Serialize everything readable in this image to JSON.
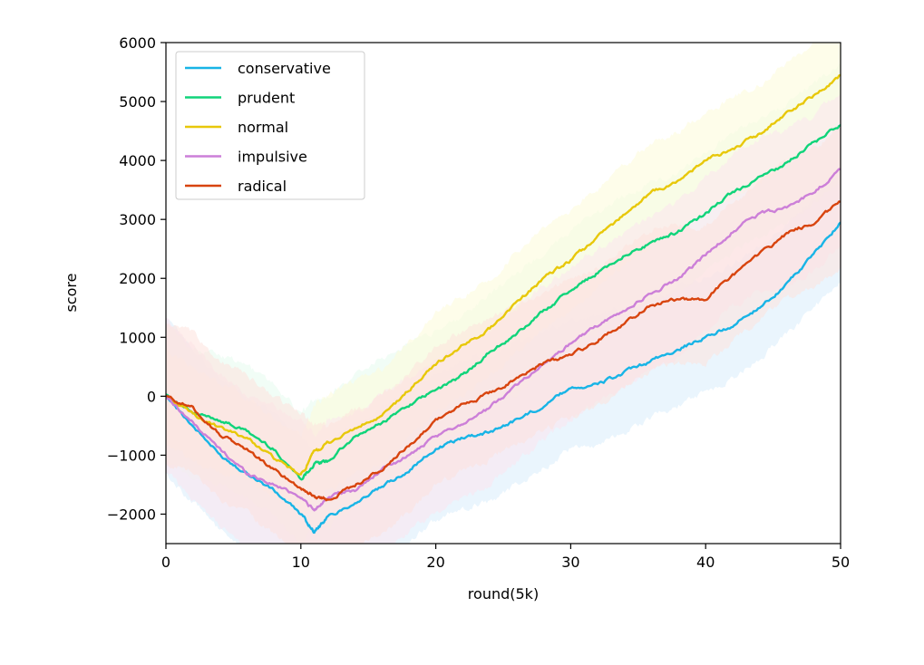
{
  "chart_data": {
    "type": "line",
    "title": "",
    "xlabel": "round(5k)",
    "ylabel": "score",
    "xlim": [
      0,
      50
    ],
    "ylim": [
      -2500,
      6000
    ],
    "xticks": [
      "0",
      "10",
      "20",
      "30",
      "40",
      "50"
    ],
    "yticks": [
      "−2000",
      "−1000",
      "0",
      "1000",
      "2000",
      "3000",
      "4000",
      "5000",
      "6000"
    ],
    "grid": false,
    "legend_position": "upper-left",
    "series": [
      {
        "name": "conservative",
        "color": "#18b4e6",
        "band_color": "#d8ecfb",
        "x": [
          0,
          2,
          4,
          6,
          8,
          10,
          11,
          12,
          14,
          16,
          18,
          20,
          22,
          24,
          26,
          28,
          30,
          32,
          34,
          36,
          38,
          40,
          42,
          44,
          46,
          48,
          50
        ],
        "y": [
          0,
          -500,
          -1000,
          -1300,
          -1600,
          -2000,
          -2300,
          -2050,
          -1800,
          -1550,
          -1250,
          -900,
          -700,
          -600,
          -400,
          -150,
          150,
          200,
          400,
          600,
          800,
          1000,
          1200,
          1500,
          1900,
          2400,
          2950
        ],
        "band_lower": [
          -1300,
          -1800,
          -2300,
          -2600,
          -2800,
          -3200,
          -3500,
          -3300,
          -3000,
          -2800,
          -2500,
          -2100,
          -1900,
          -1800,
          -1500,
          -1200,
          -900,
          -850,
          -600,
          -350,
          -150,
          50,
          300,
          650,
          1050,
          1500,
          1900
        ],
        "band_upper": [
          1300,
          800,
          300,
          0,
          -300,
          -700,
          -1000,
          -800,
          -500,
          -200,
          100,
          400,
          600,
          700,
          900,
          1100,
          1300,
          1350,
          1500,
          1650,
          1850,
          2050,
          2250,
          2550,
          2950,
          3350,
          3850
        ]
      },
      {
        "name": "prudent",
        "color": "#10d47a",
        "band_color": "#e6fbee",
        "x": [
          0,
          2,
          4,
          6,
          8,
          10,
          11,
          12,
          14,
          16,
          18,
          20,
          22,
          24,
          26,
          28,
          30,
          32,
          34,
          36,
          38,
          40,
          42,
          44,
          46,
          48,
          50
        ],
        "y": [
          50,
          -300,
          -400,
          -600,
          -900,
          -1400,
          -1150,
          -1100,
          -700,
          -450,
          -150,
          100,
          350,
          750,
          1050,
          1450,
          1800,
          2100,
          2400,
          2600,
          2800,
          3100,
          3450,
          3700,
          3950,
          4300,
          4600
        ],
        "band_lower": [
          -1100,
          -1400,
          -1500,
          -1700,
          -2000,
          -2500,
          -2250,
          -2200,
          -1800,
          -1500,
          -1200,
          -900,
          -600,
          -250,
          50,
          450,
          800,
          1100,
          1400,
          1600,
          1800,
          2100,
          2450,
          2700,
          2950,
          3300,
          3600
        ],
        "band_upper": [
          1200,
          800,
          700,
          500,
          200,
          -300,
          -50,
          0,
          400,
          650,
          950,
          1100,
          1350,
          1750,
          2050,
          2450,
          2800,
          3100,
          3400,
          3600,
          3800,
          4100,
          4450,
          4700,
          4950,
          5300,
          5600
        ]
      },
      {
        "name": "normal",
        "color": "#e8c80a",
        "band_color": "#fdfbd8",
        "x": [
          0,
          2,
          4,
          6,
          8,
          10,
          11,
          12,
          14,
          16,
          18,
          20,
          22,
          24,
          26,
          28,
          30,
          32,
          34,
          36,
          38,
          40,
          42,
          44,
          46,
          48,
          50
        ],
        "y": [
          0,
          -300,
          -550,
          -700,
          -1050,
          -1350,
          -950,
          -800,
          -550,
          -350,
          100,
          550,
          850,
          1150,
          1600,
          2000,
          2300,
          2700,
          3100,
          3450,
          3650,
          4000,
          4200,
          4450,
          4800,
          5100,
          5450
        ],
        "band_lower": [
          -800,
          -1100,
          -1300,
          -1400,
          -1700,
          -2000,
          -1750,
          -1600,
          -1350,
          -1150,
          -700,
          -300,
          0,
          300,
          750,
          1150,
          1450,
          1850,
          2250,
          2600,
          2800,
          3150,
          3350,
          3600,
          3950,
          4250,
          4600
        ],
        "band_upper": [
          800,
          500,
          200,
          0,
          -400,
          -700,
          -150,
          0,
          250,
          450,
          900,
          1400,
          1700,
          2000,
          2450,
          2850,
          3150,
          3550,
          3950,
          4300,
          4500,
          4850,
          5050,
          5300,
          5650,
          5950,
          6300
        ]
      },
      {
        "name": "impulsive",
        "color": "#cc7fd8",
        "band_color": "#fbe3ee",
        "x": [
          0,
          2,
          4,
          6,
          8,
          10,
          11,
          12,
          14,
          16,
          18,
          20,
          22,
          24,
          26,
          28,
          30,
          32,
          34,
          36,
          38,
          40,
          42,
          44,
          46,
          48,
          50
        ],
        "y": [
          0,
          -450,
          -900,
          -1300,
          -1500,
          -1700,
          -1950,
          -1700,
          -1600,
          -1250,
          -1000,
          -700,
          -450,
          -200,
          200,
          550,
          900,
          1200,
          1450,
          1750,
          2000,
          2400,
          2800,
          3100,
          3200,
          3450,
          3850
        ],
        "band_lower": [
          -1300,
          -1750,
          -2200,
          -2600,
          -2800,
          -3000,
          -3250,
          -3000,
          -2900,
          -2550,
          -2300,
          -2000,
          -1750,
          -1500,
          -1100,
          -750,
          -400,
          -100,
          150,
          450,
          700,
          1100,
          1500,
          1800,
          1900,
          2150,
          2550
        ],
        "band_upper": [
          1300,
          850,
          400,
          0,
          -200,
          -400,
          -650,
          -400,
          -300,
          50,
          300,
          600,
          850,
          1100,
          1500,
          1850,
          2200,
          2500,
          2750,
          3050,
          3300,
          3700,
          4100,
          4400,
          4500,
          4750,
          5150
        ]
      },
      {
        "name": "radical",
        "color": "#d8440e",
        "band_color": "#fde2dc",
        "x": [
          0,
          2,
          4,
          6,
          8,
          10,
          11,
          12,
          14,
          16,
          18,
          20,
          22,
          24,
          26,
          28,
          30,
          32,
          34,
          36,
          38,
          40,
          42,
          44,
          46,
          48,
          50
        ],
        "y": [
          0,
          -200,
          -650,
          -900,
          -1250,
          -1550,
          -1700,
          -1750,
          -1500,
          -1250,
          -850,
          -400,
          -150,
          50,
          300,
          550,
          700,
          950,
          1250,
          1550,
          1650,
          1650,
          2050,
          2400,
          2750,
          2950,
          3300
        ],
        "band_lower": [
          -1100,
          -1300,
          -1750,
          -2000,
          -2350,
          -2650,
          -2800,
          -2850,
          -2600,
          -2350,
          -1950,
          -1500,
          -1250,
          -1050,
          -800,
          -550,
          -400,
          -150,
          150,
          450,
          550,
          550,
          950,
          1300,
          1650,
          1850,
          2200
        ],
        "band_upper": [
          1250,
          1050,
          600,
          350,
          0,
          -300,
          -450,
          -500,
          -250,
          0,
          400,
          850,
          1100,
          1300,
          1550,
          1800,
          1950,
          2200,
          2500,
          2800,
          2900,
          2900,
          3300,
          3650,
          4000,
          4200,
          4550
        ]
      }
    ]
  }
}
